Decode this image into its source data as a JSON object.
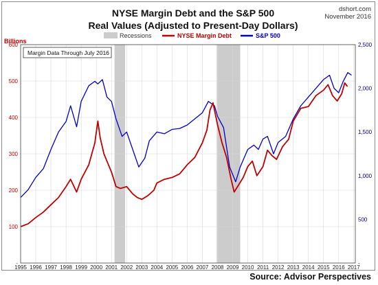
{
  "chart_data": {
    "type": "line",
    "title": "NYSE Margin Debt and the S&P 500",
    "subtitle": "Real Values (Adjusted to Present-Day Dollars)",
    "source_site": "dshort.com",
    "source_date": "November 2016",
    "ylabel_left": "Billions",
    "annotation": "Margin Data Through July 2016",
    "recession_label": "Recessions",
    "x_range": [
      1995,
      2017.1
    ],
    "y_left_range": [
      0,
      600
    ],
    "y_right_range": [
      0,
      2500
    ],
    "x_ticks": [
      1995,
      1996,
      1997,
      1998,
      1999,
      2000,
      2001,
      2002,
      2003,
      2004,
      2005,
      2006,
      2007,
      2008,
      2009,
      2010,
      2011,
      2012,
      2013,
      2014,
      2015,
      2016,
      2017
    ],
    "y_left_ticks": [
      0,
      100,
      200,
      300,
      400,
      500,
      600
    ],
    "y_left_tick_labels": [
      "-",
      "100",
      "200",
      "300",
      "400",
      "500",
      "600"
    ],
    "y_right_ticks": [
      0,
      500,
      1000,
      1500,
      2000,
      2500
    ],
    "y_right_tick_labels": [
      "-",
      "500",
      "1,000",
      "1,500",
      "2,000",
      "2,500"
    ],
    "grid": true,
    "legend_placement": "top",
    "recessions": [
      [
        2001.2,
        2001.9
      ],
      [
        2007.95,
        2009.5
      ]
    ],
    "series": [
      {
        "name": "NYSE Margin Debt",
        "axis": "left",
        "color": "#c00000",
        "x": [
          1995,
          1995.5,
          1996,
          1996.5,
          1997,
          1997.5,
          1998,
          1998.3,
          1998.7,
          1999,
          1999.5,
          1999.9,
          2000.1,
          2000.25,
          2000.5,
          2000.75,
          2001,
          2001.3,
          2001.6,
          2002,
          2002.4,
          2002.7,
          2003,
          2003.4,
          2003.8,
          2004,
          2004.5,
          2005,
          2005.5,
          2006,
          2006.5,
          2007,
          2007.3,
          2007.5,
          2007.7,
          2008,
          2008.3,
          2008.6,
          2008.9,
          2009.1,
          2009.4,
          2009.7,
          2010,
          2010.3,
          2010.6,
          2011,
          2011.3,
          2011.6,
          2011.9,
          2012.3,
          2012.7,
          2013,
          2013.5,
          2014,
          2014.5,
          2015,
          2015.3,
          2015.6,
          2015.9,
          2016.2,
          2016.4,
          2016.58
        ],
        "values": [
          100,
          108,
          125,
          140,
          160,
          180,
          210,
          230,
          195,
          230,
          270,
          330,
          390,
          345,
          300,
          275,
          250,
          210,
          205,
          210,
          190,
          180,
          175,
          185,
          200,
          220,
          230,
          235,
          245,
          270,
          290,
          330,
          365,
          420,
          440,
          380,
          330,
          290,
          230,
          195,
          215,
          235,
          265,
          280,
          240,
          265,
          310,
          295,
          285,
          320,
          340,
          390,
          425,
          430,
          460,
          475,
          490,
          460,
          445,
          465,
          495,
          485
        ]
      },
      {
        "name": "S&P 500",
        "axis": "right",
        "color": "#0000cc",
        "x": [
          1995,
          1995.5,
          1996,
          1996.5,
          1997,
          1997.5,
          1998,
          1998.3,
          1998.7,
          1999,
          1999.5,
          1999.9,
          2000.1,
          2000.4,
          2000.7,
          2001,
          2001.3,
          2001.7,
          2002,
          2002.5,
          2002.8,
          2003.2,
          2003.5,
          2004,
          2004.5,
          2005,
          2005.5,
          2006,
          2006.5,
          2007,
          2007.4,
          2007.8,
          2008,
          2008.4,
          2008.8,
          2009.2,
          2009.5,
          2010,
          2010.4,
          2010.7,
          2011,
          2011.3,
          2011.7,
          2012,
          2012.5,
          2013,
          2013.5,
          2014,
          2014.5,
          2015,
          2015.4,
          2015.7,
          2016,
          2016.3,
          2016.6,
          2016.85
        ],
        "values": [
          750,
          840,
          980,
          1080,
          1300,
          1500,
          1620,
          1800,
          1560,
          1850,
          2030,
          2080,
          2050,
          2100,
          1900,
          1850,
          1650,
          1450,
          1500,
          1250,
          1100,
          1200,
          1400,
          1500,
          1480,
          1530,
          1540,
          1580,
          1650,
          1720,
          1850,
          1800,
          1680,
          1550,
          1100,
          930,
          1100,
          1300,
          1350,
          1300,
          1420,
          1450,
          1250,
          1380,
          1450,
          1650,
          1800,
          1900,
          2000,
          2100,
          2150,
          2000,
          1950,
          2080,
          2180,
          2150
        ]
      }
    ]
  }
}
